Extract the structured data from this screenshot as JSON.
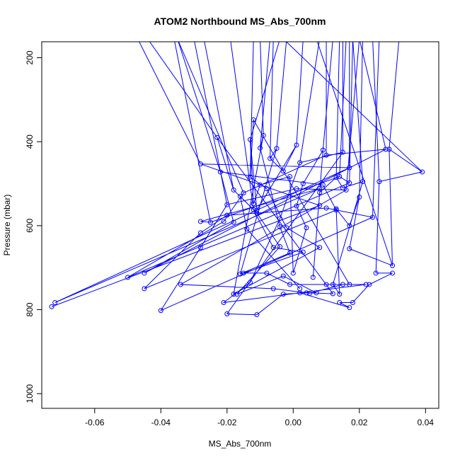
{
  "chart_data": {
    "type": "line",
    "title": "ATOM2 Northbound MS_Abs_700nm",
    "xlabel": "MS_Abs_700nm",
    "ylabel": "Pressure (mbar)",
    "xlim": [
      -0.076,
      0.044
    ],
    "ylim": [
      1035,
      162
    ],
    "y_reversed": true,
    "x_ticks": [
      -0.06,
      -0.04,
      -0.02,
      0.0,
      0.02,
      0.04
    ],
    "x_tick_labels": [
      "-0.06",
      "-0.04",
      "-0.02",
      "0.00",
      "0.02",
      "0.04"
    ],
    "y_ticks": [
      200,
      400,
      600,
      800,
      1000
    ],
    "y_tick_labels": [
      "200",
      "400",
      "600",
      "800",
      "1000"
    ],
    "grid": false,
    "legend": "none",
    "series": [
      {
        "color": "#0000ff",
        "marker": "open-circle",
        "points": [
          [
            -0.073,
            793
          ],
          [
            0.008,
            552
          ],
          [
            -0.028,
            453
          ],
          [
            0.017,
            462
          ],
          [
            -0.072,
            783
          ],
          [
            0.008,
            512
          ],
          [
            -0.028,
            590
          ],
          [
            -0.025,
            592
          ],
          [
            0.014,
            483
          ],
          [
            0.017,
            498
          ],
          [
            -0.05,
            723
          ],
          [
            -0.021,
            590
          ],
          [
            -0.015,
            522
          ],
          [
            0.01,
            432
          ],
          [
            0.028,
            418
          ],
          [
            -0.045,
            713
          ],
          [
            -0.018,
            592
          ],
          [
            -0.022,
            472
          ],
          [
            0.009,
            503
          ],
          [
            0.013,
            563
          ],
          [
            -0.045,
            750
          ],
          [
            -0.028,
            617
          ],
          [
            -0.02,
            575
          ],
          [
            0.01,
            558
          ],
          [
            0.024,
            580
          ],
          [
            -0.04,
            802
          ],
          [
            -0.028,
            652
          ],
          [
            -0.02,
            550
          ],
          [
            0.001,
            512
          ],
          [
            0.016,
            515
          ],
          [
            -0.034,
            740
          ],
          [
            -0.006,
            750
          ],
          [
            0.005,
            761
          ],
          [
            0.015,
            740
          ],
          [
            0.022,
            740
          ],
          [
            -0.021,
            783
          ],
          [
            -0.013,
            735
          ],
          [
            -0.004,
            583
          ],
          [
            0.002,
            450
          ],
          [
            0.015,
            425
          ],
          [
            -0.02,
            810
          ],
          [
            -0.011,
            812
          ],
          [
            -0.003,
            763
          ],
          [
            0.004,
            760
          ],
          [
            0.012,
            762
          ],
          [
            -0.023,
            390
          ],
          [
            -0.018,
            515
          ],
          [
            -0.012,
            562
          ],
          [
            -0.006,
            652
          ],
          [
            0.003,
            663
          ],
          [
            -0.015,
            713
          ],
          [
            -0.008,
            713
          ],
          [
            -0.001,
            740
          ],
          [
            0.01,
            740
          ],
          [
            0.017,
            740
          ],
          [
            -0.012,
            348
          ],
          [
            -0.013,
            484
          ],
          [
            -0.008,
            512
          ],
          [
            -0.002,
            605
          ],
          [
            0.008,
            652
          ],
          [
            -0.018,
            763
          ],
          [
            -0.009,
            385
          ],
          [
            -0.01,
            415
          ],
          [
            -0.004,
            603
          ],
          [
            -0.001,
            665
          ],
          [
            -0.016,
            715
          ],
          [
            -0.005,
            416
          ],
          [
            -0.007,
            440
          ],
          [
            -0.003,
            470
          ],
          [
            0.001,
            408
          ],
          [
            -0.011,
            563
          ],
          [
            -0.013,
            395
          ],
          [
            -0.012,
            548
          ],
          [
            -0.01,
            503
          ],
          [
            -0.001,
            483
          ],
          [
            0.0,
            713
          ],
          [
            0.004,
            605
          ],
          [
            0.001,
            553
          ],
          [
            0.003,
            500
          ],
          [
            0.009,
            420
          ],
          [
            0.006,
            723
          ],
          [
            0.008,
            521
          ],
          [
            0.013,
            485
          ],
          [
            0.015,
            510
          ],
          [
            0.021,
            495
          ],
          [
            0.012,
            740
          ],
          [
            0.014,
            763
          ],
          [
            0.013,
            560
          ],
          [
            0.017,
            600
          ],
          [
            0.02,
            532
          ],
          [
            0.017,
            655
          ],
          [
            0.03,
            695
          ],
          [
            0.029,
            418
          ],
          [
            0.039,
            472
          ],
          [
            0.026,
            495
          ],
          [
            0.025,
            713
          ],
          [
            0.03,
            713
          ],
          [
            0.023,
            740
          ],
          [
            0.018,
            783
          ],
          [
            0.014,
            783
          ],
          [
            0.017,
            795
          ],
          [
            0.002,
            760
          ],
          [
            0.007,
            760
          ],
          [
            -0.003,
            720
          ],
          [
            -0.017,
            763
          ],
          [
            -0.004,
            650
          ],
          [
            -0.011,
            570
          ],
          [
            -0.016,
            530
          ],
          [
            -0.014,
            608
          ],
          [
            0.002,
            750
          ]
        ],
        "segments_to_top": [
          [
            [
              -0.028,
              453
            ],
            [
              -0.047,
              155
            ]
          ],
          [
            [
              -0.025,
              592
            ],
            [
              -0.036,
              155
            ]
          ],
          [
            [
              -0.015,
              522
            ],
            [
              -0.035,
              155
            ]
          ],
          [
            [
              -0.022,
              472
            ],
            [
              -0.035,
              155
            ]
          ],
          [
            [
              -0.02,
              550
            ],
            [
              -0.03,
              155
            ]
          ],
          [
            [
              -0.018,
              515
            ],
            [
              -0.027,
              155
            ]
          ],
          [
            [
              -0.012,
              562
            ],
            [
              -0.019,
              155
            ]
          ],
          [
            [
              -0.013,
              484
            ],
            [
              -0.012,
              155
            ]
          ],
          [
            [
              -0.009,
              385
            ],
            [
              -0.01,
              155
            ]
          ],
          [
            [
              -0.01,
              415
            ],
            [
              -0.007,
              155
            ]
          ],
          [
            [
              -0.007,
              440
            ],
            [
              -0.006,
              155
            ]
          ],
          [
            [
              -0.005,
              416
            ],
            [
              -0.002,
              155
            ]
          ],
          [
            [
              0.001,
              408
            ],
            [
              0.003,
              155
            ]
          ],
          [
            [
              0.002,
              450
            ],
            [
              0.008,
              155
            ]
          ],
          [
            [
              0.009,
              420
            ],
            [
              0.012,
              155
            ]
          ],
          [
            [
              0.013,
              485
            ],
            [
              0.014,
              155
            ]
          ],
          [
            [
              0.015,
              425
            ],
            [
              0.015,
              155
            ]
          ],
          [
            [
              0.014,
              483
            ],
            [
              0.016,
              155
            ]
          ],
          [
            [
              0.017,
              462
            ],
            [
              0.017,
              155
            ]
          ],
          [
            [
              0.017,
              498
            ],
            [
              0.018,
              155
            ]
          ],
          [
            [
              0.016,
              515
            ],
            [
              0.02,
              155
            ]
          ],
          [
            [
              0.021,
              495
            ],
            [
              0.018,
              155
            ]
          ],
          [
            [
              0.028,
              418
            ],
            [
              0.02,
              155
            ]
          ],
          [
            [
              0.026,
              495
            ],
            [
              0.024,
              155
            ]
          ],
          [
            [
              0.029,
              418
            ],
            [
              0.032,
              155
            ]
          ],
          [
            [
              0.03,
              695
            ],
            [
              0.007,
              155
            ]
          ],
          [
            [
              0.039,
              472
            ],
            [
              -0.003,
              155
            ]
          ],
          [
            [
              -0.013,
              395
            ],
            [
              -0.004,
              155
            ]
          ],
          [
            [
              0.01,
              432
            ],
            [
              0.01,
              155
            ]
          ],
          [
            [
              -0.023,
              390
            ],
            [
              -0.044,
              155
            ]
          ],
          [
            [
              0.02,
              532
            ],
            [
              0.021,
              155
            ]
          ],
          [
            [
              0.024,
              580
            ],
            [
              0.026,
              155
            ]
          ]
        ]
      }
    ]
  }
}
